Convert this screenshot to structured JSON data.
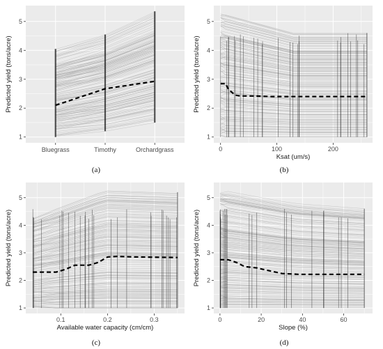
{
  "style": {
    "panel_bg": "#ebebeb",
    "grid_color": "#ffffff",
    "ice_color": "#a6a6a6",
    "mean_color": "#000000"
  },
  "chart_data": [
    {
      "id": "a",
      "caption": "(a)",
      "type": "line",
      "x_kind": "categorical",
      "categories": [
        "Bluegrass",
        "Timothy",
        "Orchardgrass"
      ],
      "xlabel": "",
      "ylabel": "Predicted yield (tons/acre)",
      "ylim": [
        0.8,
        5.55
      ],
      "yticks": [
        1,
        2,
        3,
        4,
        5
      ],
      "mean_line": {
        "x": [
          "Bluegrass",
          "Timothy",
          "Orchardgrass"
        ],
        "y": [
          2.1,
          2.67,
          2.93
        ]
      },
      "ice_range": {
        "min": [
          1.0,
          1.2,
          1.5
        ],
        "max": [
          4.05,
          4.55,
          5.35
        ]
      }
    },
    {
      "id": "b",
      "caption": "(b)",
      "type": "line",
      "x_kind": "numeric",
      "xlabel": "Ksat (um/s)",
      "ylabel": "Predicted yield (tons/acre)",
      "xlim": [
        -12,
        270
      ],
      "ylim": [
        0.8,
        5.55
      ],
      "xticks": [
        0,
        100,
        200
      ],
      "yticks": [
        1,
        2,
        3,
        4,
        5
      ],
      "mean_line": {
        "x": [
          0,
          9,
          14,
          20,
          26,
          35,
          60,
          90,
          130,
          260
        ],
        "y": [
          2.85,
          2.85,
          2.65,
          2.55,
          2.45,
          2.42,
          2.42,
          2.4,
          2.4,
          2.4
        ]
      },
      "ice_range": {
        "min": [
          1.0,
          1.0,
          1.0
        ],
        "max": [
          5.3,
          4.6,
          4.6
        ]
      }
    },
    {
      "id": "c",
      "caption": "(c)",
      "type": "line",
      "x_kind": "numeric",
      "xlabel": "Available water capacity (cm/cm)",
      "ylabel": "Predicted yield (tons/acre)",
      "xlim": [
        0.025,
        0.365
      ],
      "ylim": [
        0.8,
        5.55
      ],
      "xticks": [
        0.1,
        0.2,
        0.3
      ],
      "yticks": [
        1,
        2,
        3,
        4,
        5
      ],
      "mean_line": {
        "x": [
          0.04,
          0.09,
          0.11,
          0.13,
          0.16,
          0.18,
          0.2,
          0.22,
          0.26,
          0.35
        ],
        "y": [
          2.3,
          2.3,
          2.4,
          2.55,
          2.55,
          2.65,
          2.85,
          2.87,
          2.85,
          2.83
        ]
      },
      "ice_range": {
        "min": [
          1.0,
          1.0,
          1.0
        ],
        "max": [
          4.3,
          5.3,
          5.2
        ]
      }
    },
    {
      "id": "d",
      "caption": "(d)",
      "type": "line",
      "x_kind": "numeric",
      "xlabel": "Slope (%)",
      "ylabel": "Predicted yield (tons/acre)",
      "xlim": [
        -3,
        74
      ],
      "ylim": [
        0.8,
        5.55
      ],
      "xticks": [
        0,
        20,
        40,
        60
      ],
      "yticks": [
        1,
        2,
        3,
        4,
        5
      ],
      "mean_line": {
        "x": [
          0,
          4,
          8,
          12,
          18,
          24,
          30,
          38,
          50,
          70
        ],
        "y": [
          2.75,
          2.75,
          2.65,
          2.5,
          2.45,
          2.35,
          2.25,
          2.22,
          2.22,
          2.22
        ]
      },
      "ice_range": {
        "min": [
          1.0,
          1.0,
          1.0
        ],
        "max": [
          5.3,
          4.8,
          4.6
        ]
      }
    }
  ]
}
